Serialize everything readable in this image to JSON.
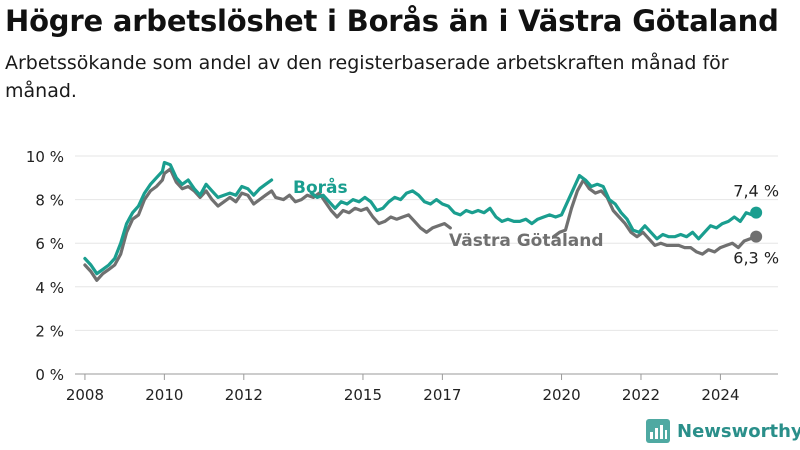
{
  "header": {
    "title": "Högre arbetslöshet i Borås än i Västra Götaland",
    "subtitle": "Arbetssökande som andel av den registerbaserade arbetskraften månad för månad."
  },
  "brand": {
    "name": "Newsworthy",
    "icon": "bar-chart-logo-icon"
  },
  "chart_data": {
    "type": "line",
    "ylim": [
      0,
      10
    ],
    "yticks": [
      0,
      2,
      4,
      6,
      8,
      10
    ],
    "yticklabels": [
      "0 %",
      "2 %",
      "4 %",
      "6 %",
      "8 %",
      "10 %"
    ],
    "xlim": [
      2007.75,
      2025.45
    ],
    "xticks": [
      2008,
      2010,
      2012,
      2015,
      2017,
      2020,
      2022,
      2024
    ],
    "xticklabels": [
      "2008",
      "2010",
      "2012",
      "2015",
      "2017",
      "2020",
      "2022",
      "2024"
    ],
    "grid": true,
    "series": [
      {
        "name": "Borås",
        "color": "#1a9e8f",
        "end_label": "7,4 %",
        "points": [
          [
            2008.0,
            5.3
          ],
          [
            2008.15,
            5.0
          ],
          [
            2008.3,
            4.6
          ],
          [
            2008.45,
            4.8
          ],
          [
            2008.6,
            5.0
          ],
          [
            2008.75,
            5.3
          ],
          [
            2008.9,
            6.0
          ],
          [
            2009.05,
            6.9
          ],
          [
            2009.2,
            7.4
          ],
          [
            2009.35,
            7.7
          ],
          [
            2009.5,
            8.3
          ],
          [
            2009.65,
            8.7
          ],
          [
            2009.8,
            9.0
          ],
          [
            2009.95,
            9.3
          ],
          [
            2010.0,
            9.7
          ],
          [
            2010.15,
            9.6
          ],
          [
            2010.3,
            9.0
          ],
          [
            2010.45,
            8.7
          ],
          [
            2010.6,
            8.9
          ],
          [
            2010.75,
            8.5
          ],
          [
            2010.9,
            8.2
          ],
          [
            2011.05,
            8.7
          ],
          [
            2011.2,
            8.4
          ],
          [
            2011.35,
            8.1
          ],
          [
            2011.5,
            8.2
          ],
          [
            2011.65,
            8.3
          ],
          [
            2011.8,
            8.2
          ],
          [
            2011.95,
            8.6
          ],
          [
            2012.1,
            8.5
          ],
          [
            2012.25,
            8.2
          ],
          [
            2012.4,
            8.5
          ],
          [
            2012.55,
            8.7
          ],
          [
            2012.7,
            8.9
          ],
          [
            2013.7,
            8.3
          ],
          [
            2013.85,
            8.1
          ],
          [
            2014.0,
            8.2
          ],
          [
            2014.15,
            7.9
          ],
          [
            2014.3,
            7.6
          ],
          [
            2014.45,
            7.9
          ],
          [
            2014.6,
            7.8
          ],
          [
            2014.75,
            8.0
          ],
          [
            2014.9,
            7.9
          ],
          [
            2015.05,
            8.1
          ],
          [
            2015.2,
            7.9
          ],
          [
            2015.35,
            7.5
          ],
          [
            2015.5,
            7.6
          ],
          [
            2015.65,
            7.9
          ],
          [
            2015.8,
            8.1
          ],
          [
            2015.95,
            8.0
          ],
          [
            2016.1,
            8.3
          ],
          [
            2016.25,
            8.4
          ],
          [
            2016.4,
            8.2
          ],
          [
            2016.55,
            7.9
          ],
          [
            2016.7,
            7.8
          ],
          [
            2016.85,
            8.0
          ],
          [
            2017.0,
            7.8
          ],
          [
            2017.15,
            7.7
          ],
          [
            2017.3,
            7.4
          ],
          [
            2017.45,
            7.3
          ],
          [
            2017.6,
            7.5
          ],
          [
            2017.75,
            7.4
          ],
          [
            2017.9,
            7.5
          ],
          [
            2018.05,
            7.4
          ],
          [
            2018.2,
            7.6
          ],
          [
            2018.35,
            7.2
          ],
          [
            2018.5,
            7.0
          ],
          [
            2018.65,
            7.1
          ],
          [
            2018.8,
            7.0
          ],
          [
            2018.95,
            7.0
          ],
          [
            2019.1,
            7.1
          ],
          [
            2019.25,
            6.9
          ],
          [
            2019.4,
            7.1
          ],
          [
            2019.55,
            7.2
          ],
          [
            2019.7,
            7.3
          ],
          [
            2019.85,
            7.2
          ],
          [
            2020.0,
            7.3
          ],
          [
            2020.15,
            7.9
          ],
          [
            2020.3,
            8.5
          ],
          [
            2020.45,
            9.1
          ],
          [
            2020.6,
            8.9
          ],
          [
            2020.75,
            8.6
          ],
          [
            2020.9,
            8.7
          ],
          [
            2021.05,
            8.6
          ],
          [
            2021.2,
            8.0
          ],
          [
            2021.35,
            7.8
          ],
          [
            2021.5,
            7.4
          ],
          [
            2021.65,
            7.1
          ],
          [
            2021.8,
            6.6
          ],
          [
            2021.95,
            6.5
          ],
          [
            2022.1,
            6.8
          ],
          [
            2022.25,
            6.5
          ],
          [
            2022.4,
            6.2
          ],
          [
            2022.55,
            6.4
          ],
          [
            2022.7,
            6.3
          ],
          [
            2022.85,
            6.3
          ],
          [
            2023.0,
            6.4
          ],
          [
            2023.15,
            6.3
          ],
          [
            2023.3,
            6.5
          ],
          [
            2023.45,
            6.2
          ],
          [
            2023.6,
            6.5
          ],
          [
            2023.75,
            6.8
          ],
          [
            2023.9,
            6.7
          ],
          [
            2024.05,
            6.9
          ],
          [
            2024.2,
            7.0
          ],
          [
            2024.35,
            7.2
          ],
          [
            2024.5,
            7.0
          ],
          [
            2024.65,
            7.4
          ],
          [
            2024.8,
            7.3
          ],
          [
            2024.9,
            7.4
          ]
        ]
      },
      {
        "name": "Västra Götaland",
        "color": "#707070",
        "end_label": "6,3 %",
        "points": [
          [
            2008.0,
            5.0
          ],
          [
            2008.15,
            4.7
          ],
          [
            2008.3,
            4.3
          ],
          [
            2008.45,
            4.6
          ],
          [
            2008.6,
            4.8
          ],
          [
            2008.75,
            5.0
          ],
          [
            2008.9,
            5.5
          ],
          [
            2009.05,
            6.5
          ],
          [
            2009.2,
            7.1
          ],
          [
            2009.35,
            7.3
          ],
          [
            2009.5,
            8.0
          ],
          [
            2009.65,
            8.4
          ],
          [
            2009.8,
            8.6
          ],
          [
            2009.95,
            8.9
          ],
          [
            2010.0,
            9.2
          ],
          [
            2010.15,
            9.4
          ],
          [
            2010.3,
            8.8
          ],
          [
            2010.45,
            8.5
          ],
          [
            2010.6,
            8.6
          ],
          [
            2010.75,
            8.4
          ],
          [
            2010.9,
            8.1
          ],
          [
            2011.05,
            8.4
          ],
          [
            2011.2,
            8.0
          ],
          [
            2011.35,
            7.7
          ],
          [
            2011.5,
            7.9
          ],
          [
            2011.65,
            8.1
          ],
          [
            2011.8,
            7.9
          ],
          [
            2011.95,
            8.3
          ],
          [
            2012.1,
            8.2
          ],
          [
            2012.25,
            7.8
          ],
          [
            2012.4,
            8.0
          ],
          [
            2012.55,
            8.2
          ],
          [
            2012.7,
            8.4
          ],
          [
            2012.8,
            8.1
          ],
          [
            2013.0,
            8.0
          ],
          [
            2013.15,
            8.2
          ],
          [
            2013.3,
            7.9
          ],
          [
            2013.45,
            8.0
          ],
          [
            2013.6,
            8.2
          ],
          [
            2013.75,
            8.1
          ],
          [
            2013.9,
            8.3
          ],
          [
            2014.05,
            7.9
          ],
          [
            2014.2,
            7.5
          ],
          [
            2014.35,
            7.2
          ],
          [
            2014.5,
            7.5
          ],
          [
            2014.65,
            7.4
          ],
          [
            2014.8,
            7.6
          ],
          [
            2014.95,
            7.5
          ],
          [
            2015.1,
            7.6
          ],
          [
            2015.25,
            7.2
          ],
          [
            2015.4,
            6.9
          ],
          [
            2015.55,
            7.0
          ],
          [
            2015.7,
            7.2
          ],
          [
            2015.85,
            7.1
          ],
          [
            2016.0,
            7.2
          ],
          [
            2016.15,
            7.3
          ],
          [
            2016.3,
            7.0
          ],
          [
            2016.45,
            6.7
          ],
          [
            2016.6,
            6.5
          ],
          [
            2016.75,
            6.7
          ],
          [
            2016.9,
            6.8
          ],
          [
            2017.05,
            6.9
          ],
          [
            2017.2,
            6.7
          ],
          [
            2019.8,
            6.3
          ],
          [
            2019.95,
            6.5
          ],
          [
            2020.1,
            6.6
          ],
          [
            2020.25,
            7.6
          ],
          [
            2020.4,
            8.4
          ],
          [
            2020.55,
            8.9
          ],
          [
            2020.7,
            8.5
          ],
          [
            2020.85,
            8.3
          ],
          [
            2021.0,
            8.4
          ],
          [
            2021.15,
            8.1
          ],
          [
            2021.3,
            7.5
          ],
          [
            2021.45,
            7.2
          ],
          [
            2021.6,
            6.9
          ],
          [
            2021.75,
            6.5
          ],
          [
            2021.9,
            6.3
          ],
          [
            2022.05,
            6.5
          ],
          [
            2022.2,
            6.2
          ],
          [
            2022.35,
            5.9
          ],
          [
            2022.5,
            6.0
          ],
          [
            2022.65,
            5.9
          ],
          [
            2022.8,
            5.9
          ],
          [
            2022.95,
            5.9
          ],
          [
            2023.1,
            5.8
          ],
          [
            2023.25,
            5.8
          ],
          [
            2023.4,
            5.6
          ],
          [
            2023.55,
            5.5
          ],
          [
            2023.7,
            5.7
          ],
          [
            2023.85,
            5.6
          ],
          [
            2024.0,
            5.8
          ],
          [
            2024.15,
            5.9
          ],
          [
            2024.3,
            6.0
          ],
          [
            2024.45,
            5.8
          ],
          [
            2024.6,
            6.1
          ],
          [
            2024.75,
            6.2
          ],
          [
            2024.9,
            6.3
          ]
        ]
      }
    ]
  }
}
